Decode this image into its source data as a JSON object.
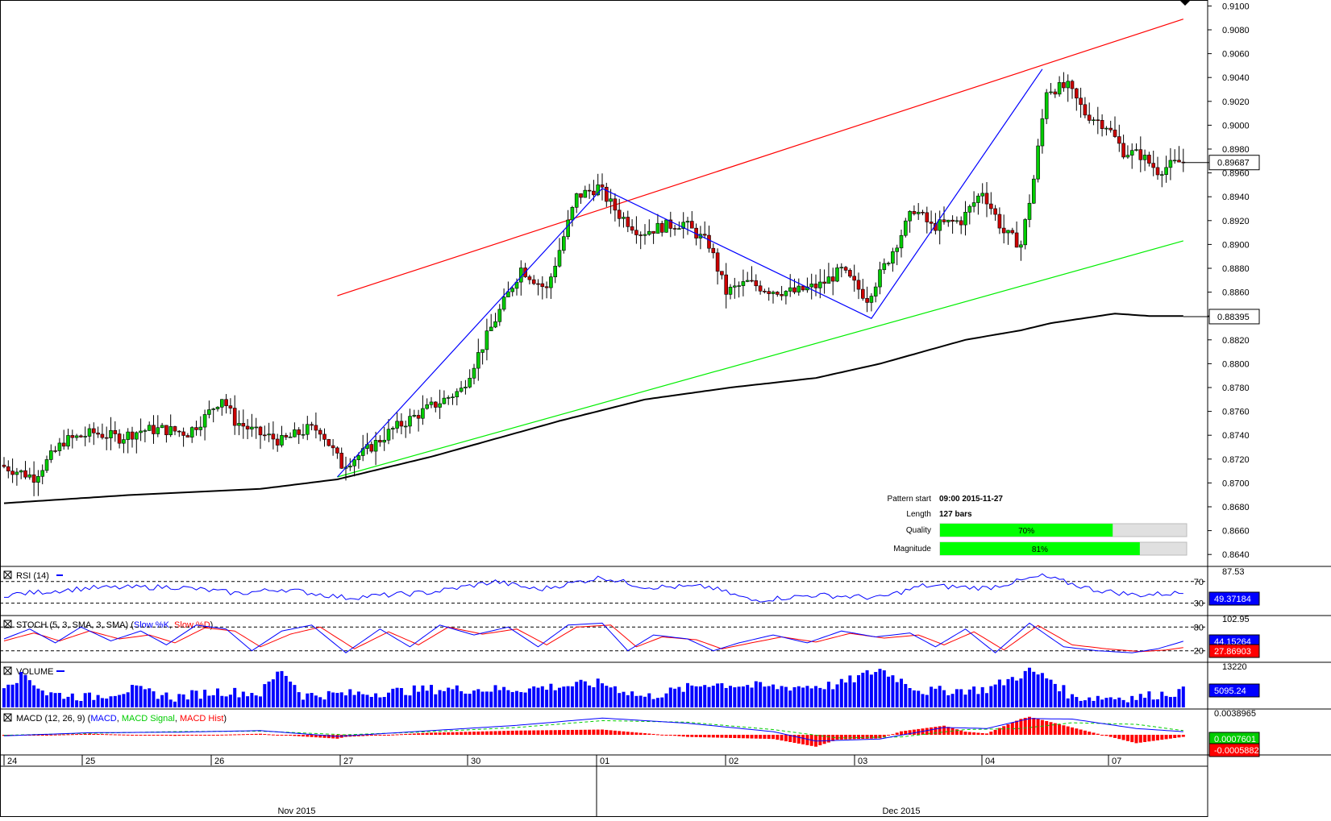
{
  "chart_data": {
    "type": "candlestick",
    "price_axis": {
      "range": [
        0.863,
        0.9105
      ],
      "ticks": [
        "0.9100",
        "0.9080",
        "0.9060",
        "0.9040",
        "0.9020",
        "0.9000",
        "0.8980",
        "0.8960",
        "0.8940",
        "0.8920",
        "0.8900",
        "0.8880",
        "0.8860",
        "0.8840",
        "0.8820",
        "0.8800",
        "0.8780",
        "0.8760",
        "0.8740",
        "0.8720",
        "0.8700",
        "0.8680",
        "0.8660",
        "0.8640"
      ],
      "current_price_label": "0.89687",
      "current_price": 0.89687,
      "ma_label": "0.88395",
      "ma_value": 0.88395
    },
    "x_axis": {
      "day_labels": [
        "24",
        "25",
        "26",
        "27",
        "30",
        "01",
        "02",
        "03",
        "04",
        "07"
      ],
      "month_labels": [
        "Nov 2015",
        "Dec 2015"
      ]
    },
    "candle_anchors": [
      [
        0,
        0.8715
      ],
      [
        8,
        0.8705
      ],
      [
        15,
        0.8735
      ],
      [
        22,
        0.8742
      ],
      [
        28,
        0.8738
      ],
      [
        33,
        0.8744
      ],
      [
        38,
        0.8745
      ],
      [
        44,
        0.8742
      ],
      [
        48,
        0.8755
      ],
      [
        52,
        0.8772
      ],
      [
        55,
        0.8752
      ],
      [
        60,
        0.8742
      ],
      [
        66,
        0.8735
      ],
      [
        72,
        0.8745
      ],
      [
        75,
        0.8745
      ],
      [
        80,
        0.8715
      ],
      [
        85,
        0.8725
      ],
      [
        92,
        0.8745
      ],
      [
        100,
        0.8762
      ],
      [
        108,
        0.8778
      ],
      [
        115,
        0.883
      ],
      [
        122,
        0.888
      ],
      [
        128,
        0.8862
      ],
      [
        135,
        0.894
      ],
      [
        140,
        0.8948
      ],
      [
        145,
        0.8925
      ],
      [
        150,
        0.891
      ],
      [
        155,
        0.8915
      ],
      [
        160,
        0.8918
      ],
      [
        166,
        0.89
      ],
      [
        170,
        0.886
      ],
      [
        175,
        0.8868
      ],
      [
        180,
        0.8862
      ],
      [
        186,
        0.886
      ],
      [
        192,
        0.8866
      ],
      [
        197,
        0.8878
      ],
      [
        203,
        0.8855
      ],
      [
        208,
        0.8888
      ],
      [
        214,
        0.893
      ],
      [
        218,
        0.8915
      ],
      [
        225,
        0.892
      ],
      [
        230,
        0.8945
      ],
      [
        235,
        0.891
      ],
      [
        239,
        0.89
      ],
      [
        242,
        0.8955
      ],
      [
        245,
        0.903
      ],
      [
        250,
        0.9032
      ],
      [
        254,
        0.901
      ],
      [
        259,
        0.9
      ],
      [
        263,
        0.8978
      ],
      [
        267,
        0.8975
      ],
      [
        271,
        0.8962
      ],
      [
        276,
        0.8969
      ]
    ],
    "moving_average": {
      "label": "",
      "anchors": [
        [
          0,
          0.8683
        ],
        [
          30,
          0.869
        ],
        [
          60,
          0.8695
        ],
        [
          78,
          0.8703
        ],
        [
          100,
          0.8722
        ],
        [
          130,
          0.8752
        ],
        [
          150,
          0.877
        ],
        [
          170,
          0.878
        ],
        [
          190,
          0.8788
        ],
        [
          205,
          0.88
        ],
        [
          225,
          0.882
        ],
        [
          238,
          0.8828
        ],
        [
          245,
          0.8834
        ],
        [
          260,
          0.8842
        ],
        [
          268,
          0.884
        ],
        [
          276,
          0.884
        ]
      ]
    },
    "channel": {
      "upper": {
        "from": [
          78,
          0.8857
        ],
        "to": [
          276,
          0.9089
        ],
        "color": "#ff0000"
      },
      "lower": {
        "from": [
          78,
          0.8705
        ],
        "to": [
          276,
          0.8903
        ],
        "color": "#00ee00"
      }
    },
    "pattern": {
      "points": [
        [
          78,
          0.8705
        ],
        [
          140,
          0.8947
        ],
        [
          203,
          0.8838
        ],
        [
          243,
          0.9047
        ]
      ],
      "color": "#0000ff"
    },
    "pattern_info": {
      "rows": [
        {
          "label": "Pattern start",
          "value": "09:00 2015-11-27"
        },
        {
          "label": "Length",
          "value": "127 bars"
        }
      ],
      "bars": [
        {
          "label": "Quality",
          "percent": 70,
          "text": "70%"
        },
        {
          "label": "Magnitude",
          "percent": 81,
          "text": "81%"
        }
      ]
    },
    "rsi": {
      "title": "RSI (14)",
      "scale_label": "87.53",
      "levels": [
        "70",
        "30"
      ],
      "value": "49.37184",
      "anchors": [
        [
          0,
          45
        ],
        [
          20,
          58
        ],
        [
          40,
          60
        ],
        [
          55,
          48
        ],
        [
          65,
          56
        ],
        [
          80,
          40
        ],
        [
          100,
          50
        ],
        [
          115,
          70
        ],
        [
          125,
          55
        ],
        [
          140,
          78
        ],
        [
          150,
          60
        ],
        [
          165,
          60
        ],
        [
          175,
          35
        ],
        [
          190,
          45
        ],
        [
          205,
          40
        ],
        [
          215,
          62
        ],
        [
          230,
          58
        ],
        [
          243,
          80
        ],
        [
          255,
          55
        ],
        [
          265,
          45
        ],
        [
          276,
          49
        ]
      ]
    },
    "stoch": {
      "title": "STOCH (5, 3, SMA, 3, SMA)",
      "legend": [
        {
          "name": "Slow %K",
          "color": "#0000ff"
        },
        {
          "name": "Slow %D",
          "color": "#ff0000"
        }
      ],
      "scale_label": "102.95",
      "levels": [
        "80",
        "20"
      ],
      "values": [
        {
          "text": "44.15264",
          "color": "#0000ff"
        },
        {
          "text": "27.86903",
          "color": "#ff0000"
        }
      ],
      "k_anchors": [
        [
          0,
          50
        ],
        [
          6,
          75
        ],
        [
          12,
          40
        ],
        [
          18,
          80
        ],
        [
          25,
          45
        ],
        [
          32,
          70
        ],
        [
          38,
          35
        ],
        [
          45,
          85
        ],
        [
          52,
          75
        ],
        [
          58,
          20
        ],
        [
          65,
          70
        ],
        [
          72,
          85
        ],
        [
          80,
          15
        ],
        [
          88,
          75
        ],
        [
          95,
          30
        ],
        [
          102,
          85
        ],
        [
          110,
          60
        ],
        [
          118,
          80
        ],
        [
          125,
          30
        ],
        [
          132,
          85
        ],
        [
          140,
          90
        ],
        [
          146,
          20
        ],
        [
          152,
          60
        ],
        [
          160,
          50
        ],
        [
          166,
          20
        ],
        [
          172,
          40
        ],
        [
          180,
          60
        ],
        [
          188,
          40
        ],
        [
          196,
          70
        ],
        [
          204,
          55
        ],
        [
          212,
          65
        ],
        [
          218,
          30
        ],
        [
          225,
          75
        ],
        [
          232,
          15
        ],
        [
          240,
          90
        ],
        [
          248,
          30
        ],
        [
          256,
          20
        ],
        [
          264,
          15
        ],
        [
          270,
          25
        ],
        [
          276,
          44
        ]
      ],
      "d_anchors": [
        [
          0,
          45
        ],
        [
          7,
          65
        ],
        [
          13,
          45
        ],
        [
          20,
          70
        ],
        [
          27,
          50
        ],
        [
          34,
          60
        ],
        [
          40,
          40
        ],
        [
          47,
          78
        ],
        [
          54,
          70
        ],
        [
          60,
          30
        ],
        [
          67,
          62
        ],
        [
          74,
          80
        ],
        [
          82,
          25
        ],
        [
          90,
          68
        ],
        [
          97,
          35
        ],
        [
          104,
          80
        ],
        [
          112,
          62
        ],
        [
          120,
          75
        ],
        [
          127,
          35
        ],
        [
          134,
          80
        ],
        [
          142,
          85
        ],
        [
          148,
          30
        ],
        [
          154,
          55
        ],
        [
          162,
          48
        ],
        [
          168,
          25
        ],
        [
          174,
          38
        ],
        [
          182,
          55
        ],
        [
          190,
          42
        ],
        [
          198,
          64
        ],
        [
          206,
          52
        ],
        [
          214,
          60
        ],
        [
          220,
          35
        ],
        [
          227,
          68
        ],
        [
          234,
          22
        ],
        [
          242,
          84
        ],
        [
          250,
          35
        ],
        [
          258,
          25
        ],
        [
          266,
          18
        ],
        [
          272,
          22
        ],
        [
          276,
          28
        ]
      ]
    },
    "volume": {
      "title": "VOLUME",
      "scale_label": "13220",
      "value": "5095.24",
      "anchors": [
        [
          0,
          60
        ],
        [
          5,
          80
        ],
        [
          10,
          35
        ],
        [
          20,
          25
        ],
        [
          30,
          45
        ],
        [
          40,
          25
        ],
        [
          50,
          40
        ],
        [
          60,
          35
        ],
        [
          65,
          95
        ],
        [
          70,
          30
        ],
        [
          85,
          35
        ],
        [
          100,
          45
        ],
        [
          120,
          45
        ],
        [
          140,
          60
        ],
        [
          150,
          25
        ],
        [
          165,
          60
        ],
        [
          180,
          50
        ],
        [
          195,
          55
        ],
        [
          205,
          95
        ],
        [
          215,
          40
        ],
        [
          230,
          45
        ],
        [
          240,
          90
        ],
        [
          245,
          70
        ],
        [
          250,
          25
        ],
        [
          265,
          25
        ],
        [
          276,
          40
        ]
      ]
    },
    "macd": {
      "title": "MACD (12, 26, 9)",
      "legend": [
        {
          "name": "MACD",
          "color": "#0000ff"
        },
        {
          "name": "MACD Signal",
          "color": "#00cc00"
        },
        {
          "name": "MACD Hist",
          "color": "#ff0000"
        }
      ],
      "scale_label": "0.0038965",
      "values": [
        {
          "text": "0.0007601",
          "color": "#00cc00"
        },
        {
          "text": "-0.0005882",
          "color": "#ff0000"
        }
      ],
      "macd_anchors": [
        [
          0,
          -0.0002
        ],
        [
          20,
          0.0004
        ],
        [
          40,
          0.0005
        ],
        [
          60,
          0.0008
        ],
        [
          78,
          -0.0003
        ],
        [
          100,
          0.0008
        ],
        [
          120,
          0.0018
        ],
        [
          140,
          0.0032
        ],
        [
          160,
          0.0022
        ],
        [
          180,
          0.0006
        ],
        [
          190,
          -0.0012
        ],
        [
          205,
          -0.0008
        ],
        [
          220,
          0.0014
        ],
        [
          230,
          0.0012
        ],
        [
          240,
          0.0031
        ],
        [
          250,
          0.003
        ],
        [
          265,
          0.0012
        ],
        [
          276,
          0.0006
        ]
      ],
      "signal_anchors": [
        [
          0,
          -0.0001
        ],
        [
          20,
          0.0003
        ],
        [
          40,
          0.0006
        ],
        [
          60,
          0.0007
        ],
        [
          80,
          0.0
        ],
        [
          100,
          0.0006
        ],
        [
          120,
          0.0014
        ],
        [
          140,
          0.0027
        ],
        [
          160,
          0.0024
        ],
        [
          180,
          0.001
        ],
        [
          195,
          -0.0006
        ],
        [
          210,
          -0.0004
        ],
        [
          225,
          0.001
        ],
        [
          238,
          0.0012
        ],
        [
          250,
          0.0023
        ],
        [
          265,
          0.002
        ],
        [
          276,
          0.0008
        ]
      ]
    }
  }
}
